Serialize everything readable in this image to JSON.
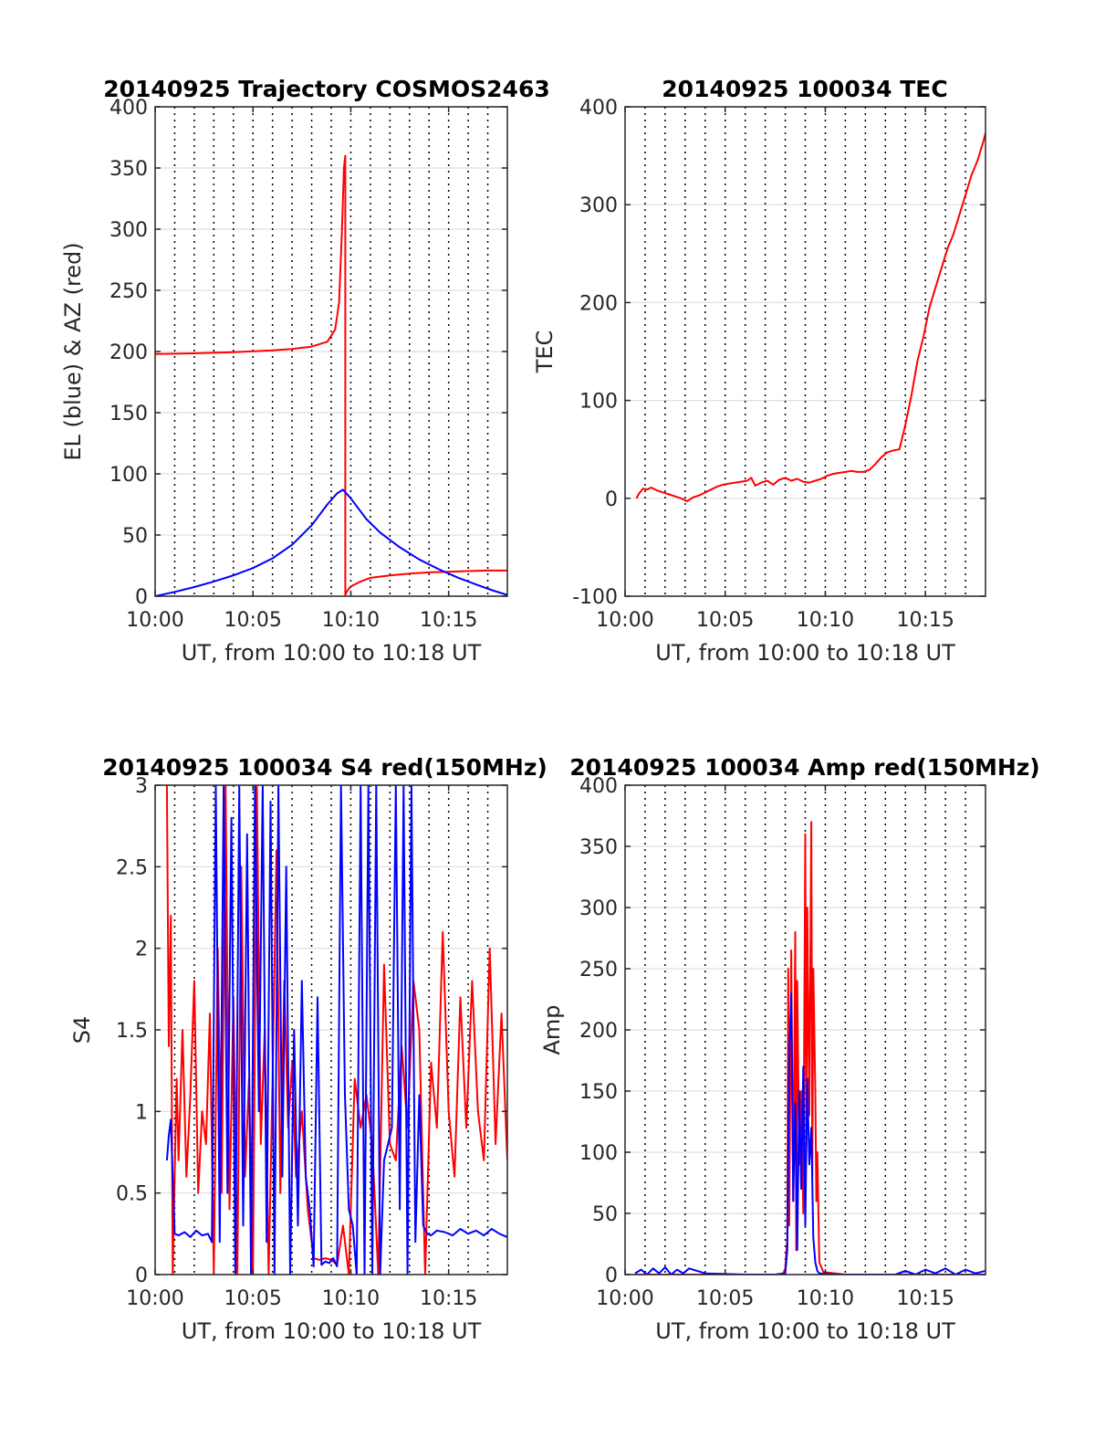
{
  "colors": {
    "red": "#ff0000",
    "blue": "#0000ff",
    "axis": "#262626",
    "grid": "#dfdfdf",
    "minor": "#000000"
  },
  "chart_data": [
    {
      "type": "line",
      "title": "20140925 Trajectory COSMOS2463",
      "xlabel": "UT, from 10:00 to 10:18 UT",
      "ylabel": "EL (blue) & AZ (red)",
      "xlim": [
        0,
        18
      ],
      "ylim": [
        0,
        400
      ],
      "xticks": [
        0,
        5,
        10,
        15
      ],
      "xtick_labels": [
        "10:00",
        "10:05",
        "10:10",
        "10:15"
      ],
      "yticks": [
        0,
        50,
        100,
        150,
        200,
        250,
        300,
        350,
        400
      ],
      "ytick_labels": [
        "0",
        "50",
        "100",
        "150",
        "200",
        "250",
        "300",
        "350",
        "400"
      ],
      "grid": true,
      "series": [
        {
          "color": "red",
          "x": [
            0,
            2,
            4,
            6,
            7,
            8,
            8.8,
            9.2,
            9.4,
            9.55,
            9.65,
            9.72,
            9.72,
            9.8,
            10.0,
            10.5,
            11,
            12,
            13,
            14,
            15,
            16,
            17,
            18
          ],
          "y": [
            198,
            198.5,
            199.5,
            201,
            202,
            204,
            208,
            218,
            240,
            300,
            350,
            360,
            1,
            4,
            8,
            12,
            15,
            17,
            18.5,
            19.5,
            20,
            20.5,
            21,
            21
          ]
        },
        {
          "color": "blue",
          "x": [
            0,
            1,
            2,
            3,
            4,
            5,
            6,
            7,
            8,
            8.8,
            9.3,
            9.6,
            10,
            10.8,
            11.5,
            12.5,
            13.5,
            14.5,
            15.5,
            16.5,
            17.3,
            18
          ],
          "y": [
            0,
            3.5,
            7.5,
            12,
            17,
            23,
            31,
            42,
            58,
            75,
            84,
            87,
            80,
            63,
            52,
            40,
            30,
            22,
            15,
            9,
            4.5,
            1
          ]
        }
      ]
    },
    {
      "type": "line",
      "title": "20140925 100034 TEC",
      "xlabel": "UT, from 10:00 to 10:18 UT",
      "ylabel": "TEC",
      "xlim": [
        0,
        18
      ],
      "ylim": [
        -100,
        400
      ],
      "xticks": [
        0,
        5,
        10,
        15
      ],
      "xtick_labels": [
        "10:00",
        "10:05",
        "10:10",
        "10:15"
      ],
      "yticks": [
        -100,
        0,
        100,
        200,
        300,
        400
      ],
      "ytick_labels": [
        "-100",
        "0",
        "100",
        "200",
        "300",
        "400"
      ],
      "grid": true,
      "series": [
        {
          "color": "red",
          "x": [
            0.57,
            0.7,
            0.9,
            1.1,
            1.3,
            1.6,
            1.9,
            2.2,
            2.5,
            2.8,
            3.1,
            3.4,
            3.7,
            4.0,
            4.3,
            4.6,
            4.9,
            5.2,
            5.5,
            5.8,
            6.1,
            6.3,
            6.5,
            6.8,
            7.1,
            7.4,
            7.7,
            8.0,
            8.3,
            8.6,
            8.9,
            9.2,
            9.5,
            9.8,
            10.1,
            10.4,
            10.7,
            11.0,
            11.3,
            11.6,
            11.9,
            12.2,
            12.5,
            12.8,
            13.1,
            13.4,
            13.7,
            14.0,
            14.3,
            14.6,
            14.9,
            15.2,
            15.5,
            15.8,
            16.1,
            16.4,
            16.7,
            17.0,
            17.3,
            17.6,
            17.9,
            18.0
          ],
          "y": [
            0,
            5,
            10,
            9,
            11,
            8,
            6,
            4,
            2,
            0,
            -3,
            1,
            3,
            6,
            9,
            12,
            14,
            15,
            16,
            17,
            18,
            21,
            13,
            16,
            18,
            14,
            19,
            21,
            18,
            20,
            17,
            16,
            18,
            20,
            23,
            25,
            26,
            27,
            28,
            27,
            27,
            29,
            35,
            42,
            47,
            49,
            50,
            75,
            105,
            140,
            165,
            195,
            215,
            235,
            255,
            270,
            290,
            310,
            330,
            345,
            365,
            373
          ]
        }
      ]
    },
    {
      "type": "line",
      "title": "20140925 100034 S4 red(150MHz)",
      "xlabel": "UT, from 10:00 to 10:18 UT",
      "ylabel": "S4",
      "xlim": [
        0,
        18
      ],
      "ylim": [
        0,
        3
      ],
      "xticks": [
        0,
        5,
        10,
        15
      ],
      "xtick_labels": [
        "10:00",
        "10:05",
        "10:10",
        "10:15"
      ],
      "yticks": [
        0,
        0.5,
        1,
        1.5,
        2,
        2.5,
        3
      ],
      "ytick_labels": [
        "0",
        "0.5",
        "1",
        "1.5",
        "2",
        "2.5",
        "3"
      ],
      "grid": true,
      "series": [
        {
          "color": "red",
          "x": [
            0.6,
            0.7,
            0.8,
            0.9,
            1.0,
            1.1,
            1.2,
            1.4,
            1.6,
            1.8,
            2.0,
            2.2,
            2.4,
            2.6,
            2.8,
            3.0,
            3.2,
            3.4,
            3.6,
            3.8,
            4.0,
            4.2,
            4.4,
            4.6,
            4.8,
            5.0,
            5.2,
            5.4,
            5.6,
            5.8,
            6.0,
            6.2,
            6.4,
            6.6,
            6.8,
            7.0,
            7.2,
            7.5,
            7.8,
            8.1,
            8.4,
            8.7,
            9.0,
            9.3,
            9.6,
            9.9,
            10.2,
            10.5,
            10.8,
            11.1,
            11.4,
            11.7,
            12.0,
            12.3,
            12.6,
            12.9,
            13.2,
            13.5,
            13.8,
            14.1,
            14.4,
            14.7,
            15.0,
            15.3,
            15.6,
            15.9,
            16.2,
            16.5,
            16.8,
            17.1,
            17.4,
            17.7,
            18.0
          ],
          "y": [
            3,
            1.4,
            2.2,
            0,
            0.6,
            1.2,
            0.7,
            1.5,
            0.6,
            1.1,
            1.8,
            0.5,
            1.0,
            0.8,
            1.6,
            0,
            2.0,
            0.5,
            3,
            0.4,
            1.7,
            0,
            2.5,
            0.6,
            1.2,
            0,
            3,
            0.8,
            1.5,
            0,
            1.2,
            2.6,
            0.5,
            1.8,
            0.9,
            1.3,
            0.6,
            1.0,
            0.4,
            0.1,
            0.09,
            0.1,
            0.09,
            0.06,
            0.3,
            0,
            1.2,
            0.9,
            1.1,
            0.8,
            0,
            1.9,
            0.8,
            0.7,
            1.4,
            0.9,
            1.8,
            1.5,
            0,
            1.3,
            0.9,
            2.1,
            1.0,
            0.6,
            1.7,
            0.9,
            1.8,
            1.0,
            0.7,
            2.0,
            0.8,
            1.6,
            0.7
          ]
        },
        {
          "color": "blue",
          "x": [
            0.6,
            0.7,
            0.8,
            0.9,
            1.0,
            1.2,
            1.5,
            1.8,
            2.1,
            2.4,
            2.7,
            2.9,
            3.1,
            3.3,
            3.5,
            3.7,
            3.9,
            4.1,
            4.3,
            4.5,
            4.7,
            4.9,
            5.1,
            5.3,
            5.5,
            5.7,
            5.9,
            6.1,
            6.3,
            6.5,
            6.7,
            6.9,
            7.1,
            7.3,
            7.5,
            7.7,
            7.9,
            8.1,
            8.3,
            8.5,
            8.7,
            8.9,
            9.1,
            9.3,
            9.5,
            9.7,
            9.9,
            10.1,
            10.3,
            10.5,
            10.7,
            10.9,
            11.1,
            11.3,
            11.5,
            11.7,
            11.9,
            12.1,
            12.3,
            12.5,
            12.7,
            12.9,
            13.1,
            13.3,
            13.5,
            13.7,
            13.9,
            14.1,
            14.4,
            14.8,
            15.2,
            15.6,
            16.0,
            16.4,
            16.8,
            17.2,
            17.6,
            18.0
          ],
          "y": [
            0.7,
            0.85,
            0.95,
            0.6,
            0.25,
            0.24,
            0.26,
            0.23,
            0.27,
            0.24,
            0.25,
            0.2,
            3,
            0.2,
            3,
            0.5,
            2.8,
            0,
            3,
            0.3,
            2.7,
            0,
            3,
            1.0,
            3,
            0.2,
            2.9,
            0,
            3,
            0.6,
            2.5,
            0,
            1.5,
            0.3,
            1.8,
            0.6,
            0.4,
            0.05,
            1.7,
            0.06,
            0.08,
            0.07,
            0.1,
            0.05,
            3,
            1.1,
            0.4,
            0.3,
            0,
            3,
            0,
            3,
            0,
            3,
            0,
            0.7,
            0.8,
            0.9,
            3,
            0.4,
            3,
            0,
            3,
            0.2,
            1.1,
            0.3,
            0.25,
            0.24,
            0.27,
            0.26,
            0.24,
            0.28,
            0.25,
            0.27,
            0.24,
            0.28,
            0.25,
            0.23
          ]
        }
      ]
    },
    {
      "type": "line",
      "title": "20140925 100034 Amp red(150MHz)",
      "xlabel": "UT, from 10:00 to 10:18 UT",
      "ylabel": "Amp",
      "xlim": [
        0,
        18
      ],
      "ylim": [
        0,
        400
      ],
      "xticks": [
        0,
        5,
        10,
        15
      ],
      "xtick_labels": [
        "10:00",
        "10:05",
        "10:10",
        "10:15"
      ],
      "yticks": [
        0,
        50,
        100,
        150,
        200,
        250,
        300,
        350,
        400
      ],
      "ytick_labels": [
        "0",
        "50",
        "100",
        "150",
        "200",
        "250",
        "300",
        "350",
        "400"
      ],
      "grid": true,
      "series": [
        {
          "color": "red",
          "x": [
            0.5,
            2.0,
            4.0,
            6.0,
            7.5,
            7.9,
            8.0,
            8.1,
            8.15,
            8.2,
            8.3,
            8.4,
            8.5,
            8.55,
            8.6,
            8.7,
            8.8,
            8.9,
            9.0,
            9.05,
            9.1,
            9.2,
            9.3,
            9.35,
            9.4,
            9.5,
            9.55,
            9.6,
            9.7,
            9.9,
            11,
            14,
            18
          ],
          "y": [
            0,
            0,
            0,
            0,
            0,
            1,
            5,
            30,
            250,
            40,
            265,
            60,
            280,
            20,
            240,
            90,
            150,
            50,
            360,
            100,
            300,
            130,
            370,
            80,
            250,
            150,
            60,
            100,
            10,
            2,
            0,
            0,
            0
          ]
        },
        {
          "color": "blue",
          "x": [
            0.5,
            0.8,
            1.1,
            1.4,
            1.7,
            2.0,
            2.3,
            2.6,
            2.9,
            3.2,
            4.0,
            6.0,
            7.5,
            8.0,
            8.1,
            8.2,
            8.3,
            8.4,
            8.5,
            8.6,
            8.7,
            8.8,
            8.9,
            9.0,
            9.1,
            9.2,
            9.3,
            9.4,
            9.5,
            9.6,
            9.7,
            10.5,
            12,
            13.5,
            14.0,
            14.5,
            15.0,
            15.5,
            16.0,
            16.5,
            17.0,
            17.5,
            18.0
          ],
          "y": [
            1,
            4,
            0,
            5,
            1,
            6,
            0,
            4,
            1,
            5,
            1,
            0,
            0,
            1,
            20,
            180,
            230,
            60,
            140,
            20,
            150,
            70,
            170,
            40,
            160,
            90,
            120,
            30,
            10,
            3,
            1,
            0,
            0,
            0,
            3,
            0,
            4,
            1,
            5,
            0,
            4,
            1,
            3
          ]
        }
      ]
    }
  ]
}
